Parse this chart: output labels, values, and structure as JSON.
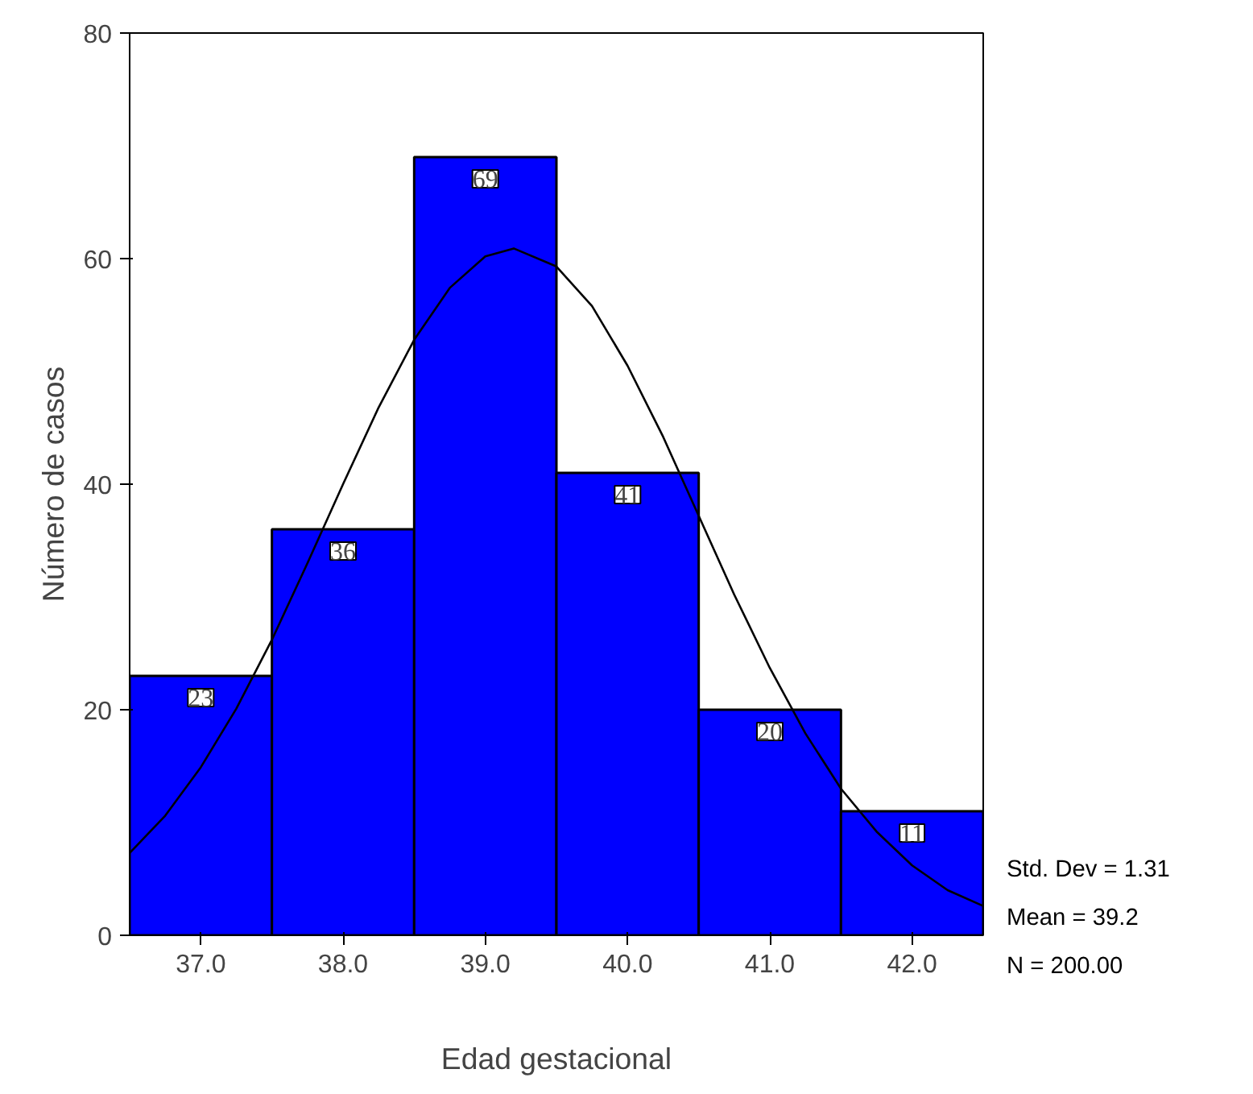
{
  "chart_data": {
    "type": "histogram",
    "xlabel": "Edad gestacional",
    "ylabel": "Número de casos",
    "bins": [
      36.5,
      37.5,
      38.5,
      39.5,
      40.5,
      41.5,
      42.5
    ],
    "values": [
      23,
      36,
      69,
      41,
      20,
      11
    ],
    "color": "#0000ff",
    "value_labels": [
      "23",
      "36",
      "69",
      "41",
      "20",
      "11"
    ],
    "xlim": [
      36.5,
      42.5
    ],
    "xticks": [
      {
        "value": 37,
        "label": "37.0"
      },
      {
        "value": 38,
        "label": "38.0"
      },
      {
        "value": 39,
        "label": "39.0"
      },
      {
        "value": 40,
        "label": "40.0"
      },
      {
        "value": 41,
        "label": "41.0"
      },
      {
        "value": 42,
        "label": "42.0"
      }
    ],
    "ylim": [
      0,
      80
    ],
    "yticks": [
      0,
      20,
      40,
      60,
      80
    ],
    "grid": false,
    "series": [
      {
        "type": "line",
        "color": "#000000",
        "x": [
          36.5,
          36.75,
          37,
          37.25,
          37.5,
          37.75,
          38,
          38.25,
          38.5,
          38.75,
          39,
          39.2,
          39.5,
          39.75,
          40,
          40.25,
          40.5,
          40.75,
          41,
          41.25,
          41.5,
          41.75,
          42,
          42.25,
          42.5
        ],
        "values": [
          7.3,
          10.6,
          14.9,
          20.1,
          26.2,
          33.0,
          40.0,
          46.8,
          52.8,
          57.4,
          60.2,
          60.9,
          59.3,
          55.8,
          50.5,
          44.2,
          37.2,
          30.2,
          23.7,
          17.9,
          13.0,
          9.2,
          6.2,
          4.0,
          2.6
        ]
      }
    ],
    "annotations": [
      "Std. Dev = 1.31",
      "Mean = 39.2",
      "N = 200.00"
    ]
  }
}
